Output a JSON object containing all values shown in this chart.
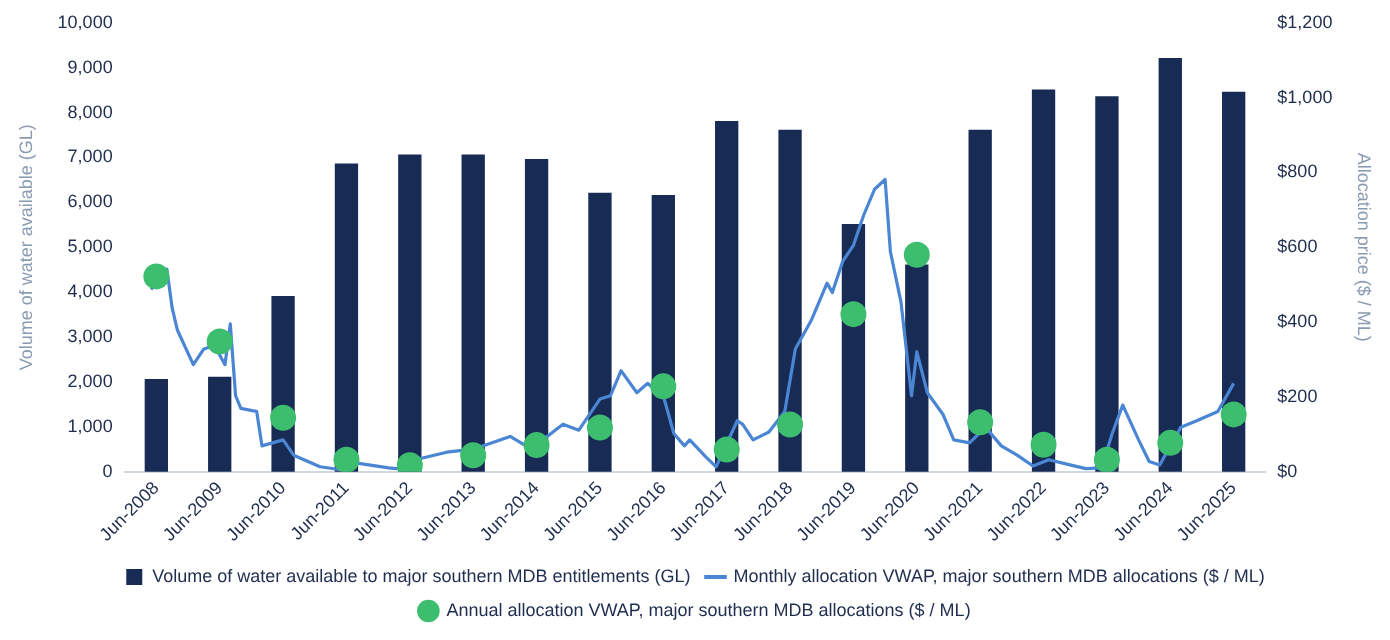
{
  "chart_data": {
    "type": "bar",
    "x": [
      "2008-06",
      "2009-06",
      "2010-06",
      "2011-06",
      "2012-06",
      "2013-06",
      "2014-06",
      "2015-06",
      "2016-06",
      "2017-06",
      "2018-06",
      "2019-06",
      "2020-06",
      "2021-06",
      "2022-06",
      "2023-06",
      "2024-06",
      "2025-06"
    ],
    "xlim": [
      "2007-12",
      "2025-12"
    ],
    "xticks": [
      {
        "value": "2008-06",
        "label": "Jun-2008"
      },
      {
        "value": "2009-06",
        "label": "Jun-2009"
      },
      {
        "value": "2010-06",
        "label": "Jun-2010"
      },
      {
        "value": "2011-06",
        "label": "Jun-2011"
      },
      {
        "value": "2012-06",
        "label": "Jun-2012"
      },
      {
        "value": "2013-06",
        "label": "Jun-2013"
      },
      {
        "value": "2014-06",
        "label": "Jun-2014"
      },
      {
        "value": "2015-06",
        "label": "Jun-2015"
      },
      {
        "value": "2016-06",
        "label": "Jun-2016"
      },
      {
        "value": "2017-06",
        "label": "Jun-2017"
      },
      {
        "value": "2018-06",
        "label": "Jun-2018"
      },
      {
        "value": "2019-06",
        "label": "Jun-2019"
      },
      {
        "value": "2020-06",
        "label": "Jun-2020"
      },
      {
        "value": "2021-06",
        "label": "Jun-2021"
      },
      {
        "value": "2022-06",
        "label": "Jun-2022"
      },
      {
        "value": "2023-06",
        "label": "Jun-2023"
      },
      {
        "value": "2024-06",
        "label": "Jun-2024"
      },
      {
        "value": "2025-06",
        "label": "Jun-2025"
      }
    ],
    "ylabel": "Volume of water available (GL)",
    "y2label": "Allocation price ($ / ML)",
    "ylim": [
      0,
      10000
    ],
    "yticks": [
      0,
      {
        "value": 1000,
        "label": "1,000"
      },
      {
        "value": 2000,
        "label": "2,000"
      },
      {
        "value": 3000,
        "label": "3,000"
      },
      {
        "value": 4000,
        "label": "4,000"
      },
      {
        "value": 5000,
        "label": "5,000"
      },
      {
        "value": 6000,
        "label": "6,000"
      },
      {
        "value": 7000,
        "label": "7,000"
      },
      {
        "value": 8000,
        "label": "8,000"
      },
      {
        "value": 9000,
        "label": "9,000"
      },
      {
        "value": 10000,
        "label": "10,000"
      }
    ],
    "y2lim": [
      0,
      1200
    ],
    "y2ticks": [
      {
        "value": 0,
        "label": "$0"
      },
      {
        "value": 200,
        "label": "$200"
      },
      {
        "value": 400,
        "label": "$400"
      },
      {
        "value": 600,
        "label": "$600"
      },
      {
        "value": 800,
        "label": "$800"
      },
      {
        "value": 1000,
        "label": "$1,000"
      },
      {
        "value": 1200,
        "label": "$1,200"
      }
    ],
    "grid": false,
    "legend": "bottom",
    "series": [
      {
        "name": "Volume of water available to major southern MDB entitlements (GL)",
        "color": "#172b55",
        "values": [
          2050,
          2100,
          3900,
          6850,
          7050,
          7050,
          6950,
          6200,
          6150,
          7800,
          7600,
          5500,
          4600,
          7600,
          8500,
          8350,
          9200,
          8450
        ]
      },
      {
        "name": "Monthly allocation VWAP, major southern MDB allocations ($ / ML)",
        "type": "line",
        "axis": "y2",
        "color": "#4a86d4",
        "marker": "none",
        "x": [
          "2008-05",
          "2008-08",
          "2008-09",
          "2008-10",
          "2009-01",
          "2009-03",
          "2009-05",
          "2009-07",
          "2009-08",
          "2009-09",
          "2009-10",
          "2010-01",
          "2010-02",
          "2010-06",
          "2010-08",
          "2011-01",
          "2011-05",
          "2011-08",
          "2012-02",
          "2012-06",
          "2012-08",
          "2013-01",
          "2013-06",
          "2014-01",
          "2014-04",
          "2014-08",
          "2014-11",
          "2015-02",
          "2015-06",
          "2015-08",
          "2015-10",
          "2016-01",
          "2016-03",
          "2016-06",
          "2016-08",
          "2016-10",
          "2016-11",
          "2017-02",
          "2017-04",
          "2017-08",
          "2017-09",
          "2017-11",
          "2018-02",
          "2018-05",
          "2018-07",
          "2018-10",
          "2019-01",
          "2019-02",
          "2019-04",
          "2019-06",
          "2019-08",
          "2019-10",
          "2019-12",
          "2020-01",
          "2020-03",
          "2020-05",
          "2020-06",
          "2020-08",
          "2020-11",
          "2021-01",
          "2021-04",
          "2021-07",
          "2021-10",
          "2022-01",
          "2022-04",
          "2022-07",
          "2022-11",
          "2023-02",
          "2023-05",
          "2023-07",
          "2023-09",
          "2023-12",
          "2024-02",
          "2024-04",
          "2024-08",
          "2024-11",
          "2025-03",
          "2025-06"
        ],
        "values": [
          487,
          541,
          437,
          378,
          286,
          328,
          337,
          286,
          395,
          203,
          169,
          161,
          69,
          85,
          44,
          13,
          5,
          23,
          10,
          5,
          35,
          52,
          60,
          94,
          69,
          94,
          127,
          111,
          194,
          203,
          270,
          211,
          236,
          203,
          102,
          69,
          85,
          40,
          13,
          136,
          127,
          85,
          106,
          161,
          328,
          404,
          504,
          479,
          563,
          605,
          688,
          755,
          781,
          588,
          454,
          203,
          320,
          211,
          152,
          85,
          77,
          119,
          69,
          44,
          15,
          32,
          18,
          8,
          10,
          102,
          178,
          85,
          27,
          18,
          119,
          136,
          161,
          236
        ]
      },
      {
        "name": "Annual allocation VWAP, major southern MDB allocations ($ / ML)",
        "type": "scatter",
        "axis": "y2",
        "color": "#3dbd6e",
        "marker": "circle",
        "values": [
          522,
          348,
          144,
          32,
          17,
          44,
          71,
          118,
          228,
          59,
          126,
          421,
          580,
          132,
          72,
          32,
          77,
          153
        ]
      }
    ]
  }
}
